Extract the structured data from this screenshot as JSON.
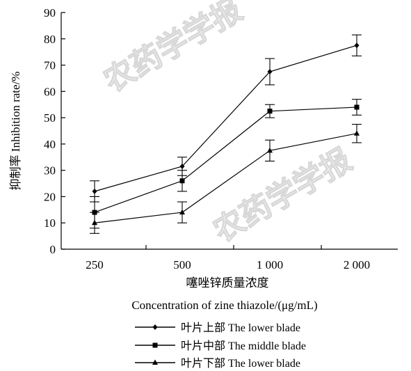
{
  "chart_data": {
    "type": "line",
    "ylabel": "抑制率 Inhibition rate/%",
    "xlabel": [
      "噻唑锌质量浓度",
      "Concentration of zine thiazole/(μg/mL)"
    ],
    "categories": [
      "250",
      "500",
      "1 000",
      "2 000"
    ],
    "ylim": [
      0,
      90
    ],
    "yticks": [
      "0",
      "10",
      "20",
      "30",
      "40",
      "50",
      "60",
      "70",
      "80",
      "90"
    ],
    "grid": false,
    "legend_position": "bottom",
    "series": [
      {
        "name": "叶片上部 The lower blade",
        "marker": "diamond",
        "values": [
          22.0,
          31.5,
          67.5,
          77.5
        ],
        "errors": [
          4.0,
          3.5,
          5.0,
          4.0
        ]
      },
      {
        "name": "叶片中部 The middle blade",
        "marker": "square",
        "values": [
          14.0,
          26.0,
          52.5,
          54.0
        ],
        "errors": [
          6.0,
          4.0,
          2.5,
          3.0
        ]
      },
      {
        "name": "叶片下部 The lower blade",
        "marker": "triangle",
        "values": [
          10.0,
          14.0,
          37.5,
          44.0
        ],
        "errors": [
          4.0,
          4.0,
          4.0,
          3.5
        ]
      }
    ]
  },
  "watermark": "农药学学报"
}
